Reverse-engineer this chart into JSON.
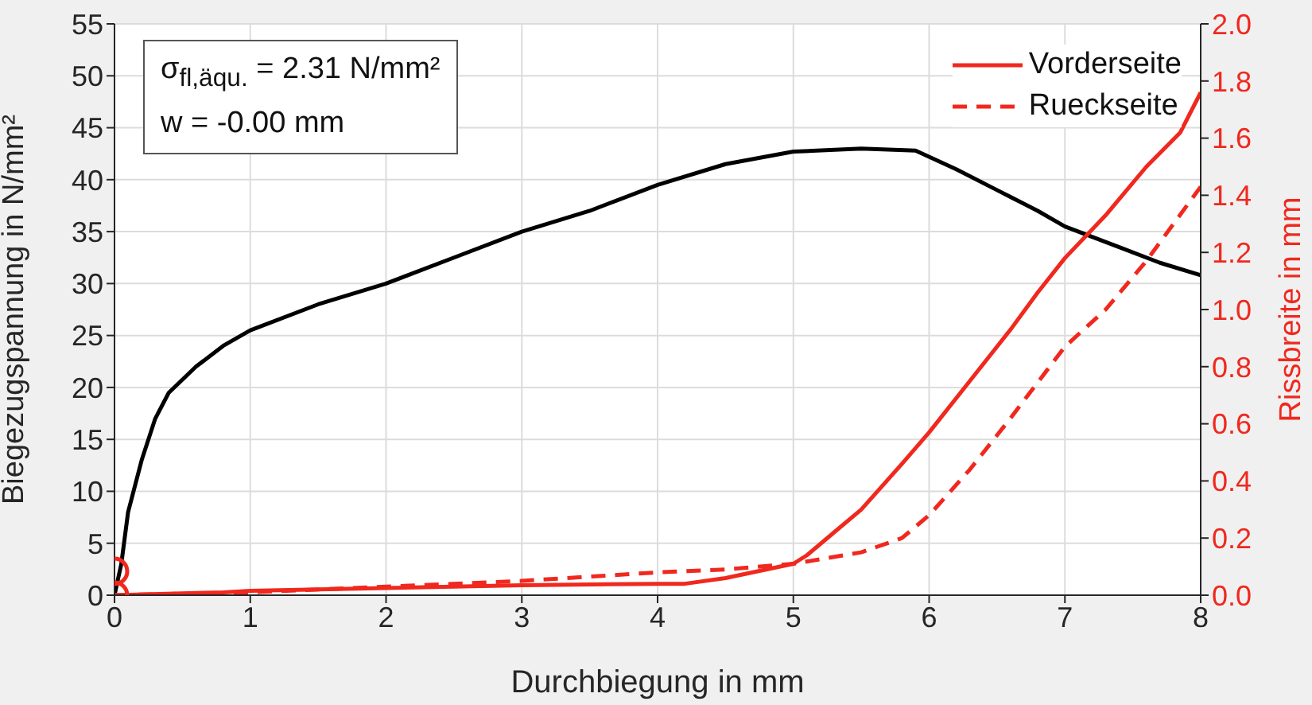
{
  "chart_data": {
    "type": "line",
    "xlabel": "Durchbiegung in mm",
    "ylabel": "Biegezugspannung in N/mm²",
    "y2label": "Rissbreite in mm",
    "annotations": [
      "σ$_{fl,äqu.}$ = 2.31 N/mm²",
      "w = -0.00 mm"
    ],
    "xlim": [
      0,
      8
    ],
    "xticks": [
      0,
      1,
      2,
      3,
      4,
      5,
      6,
      7,
      8
    ],
    "ylim": [
      0,
      55
    ],
    "yticks": [
      0,
      5,
      10,
      15,
      20,
      25,
      30,
      35,
      40,
      45,
      50,
      55
    ],
    "y2lim": [
      0,
      2
    ],
    "y2ticks": [
      {
        "value": 0,
        "label": "0.0"
      },
      {
        "value": 0.2,
        "label": "0.2"
      },
      {
        "value": 0.4,
        "label": "0.4"
      },
      {
        "value": 0.6,
        "label": "0.6"
      },
      {
        "value": 0.8,
        "label": "0.8"
      },
      {
        "value": 1,
        "label": "1.0"
      },
      {
        "value": 1.2,
        "label": "1.2"
      },
      {
        "value": 1.4,
        "label": "1.4"
      },
      {
        "value": 1.6,
        "label": "1.6"
      },
      {
        "value": 1.8,
        "label": "1.8"
      },
      {
        "value": 2,
        "label": "2.0"
      }
    ],
    "grid": true,
    "legend": "top right",
    "marker": "none",
    "series": [
      {
        "color": "#000000",
        "line_style": "solid",
        "x": [
          0,
          0.05,
          0.1,
          0.2,
          0.3,
          0.4,
          0.6,
          0.8,
          1,
          1.5,
          2,
          2.5,
          3,
          3.5,
          4,
          4.5,
          5,
          5.5,
          5.9,
          6.2,
          6.5,
          6.8,
          7,
          7.4,
          7.7,
          8
        ],
        "values": [
          0,
          3,
          8,
          13,
          17,
          19.5,
          22,
          24,
          25.5,
          28,
          30,
          32.5,
          35,
          37,
          39.5,
          41.5,
          42.7,
          43,
          42.8,
          41,
          39,
          37,
          35.5,
          33.5,
          32,
          30.8
        ]
      },
      {
        "name": "Vorderseite",
        "color": "#f0281e",
        "axis": "y2",
        "line_style": "solid",
        "x": [
          0,
          0.8,
          1,
          2,
          3,
          4,
          4.2,
          4.5,
          5,
          5.1,
          5.3,
          5.5,
          5.8,
          6,
          6.3,
          6.6,
          6.8,
          7,
          7.3,
          7.6,
          7.85,
          8
        ],
        "values": [
          0,
          0.01,
          0.015,
          0.025,
          0.035,
          0.04,
          0.04,
          0.06,
          0.11,
          0.14,
          0.22,
          0.3,
          0.46,
          0.57,
          0.75,
          0.93,
          1.06,
          1.18,
          1.33,
          1.5,
          1.62,
          1.76
        ]
      },
      {
        "name": "Rueckseite",
        "color": "#f0281e",
        "axis": "y2",
        "line_style": "dashed",
        "x": [
          0,
          1,
          2,
          3,
          4,
          4.5,
          5,
          5.5,
          5.8,
          6,
          6.3,
          6.6,
          7,
          7.3,
          7.6,
          8
        ],
        "values": [
          0,
          0.01,
          0.03,
          0.05,
          0.08,
          0.09,
          0.11,
          0.15,
          0.2,
          0.28,
          0.44,
          0.62,
          0.87,
          1.0,
          1.17,
          1.43
        ]
      },
      {
        "type": "scatter",
        "color": "#f0281e",
        "marker": "circle",
        "x": [
          0
        ],
        "values": [
          2.3
        ]
      },
      {
        "type": "scatter",
        "color": "#f0281e",
        "marker": "circle",
        "axis": "y2",
        "x": [
          0
        ],
        "values": [
          0
        ]
      }
    ]
  }
}
